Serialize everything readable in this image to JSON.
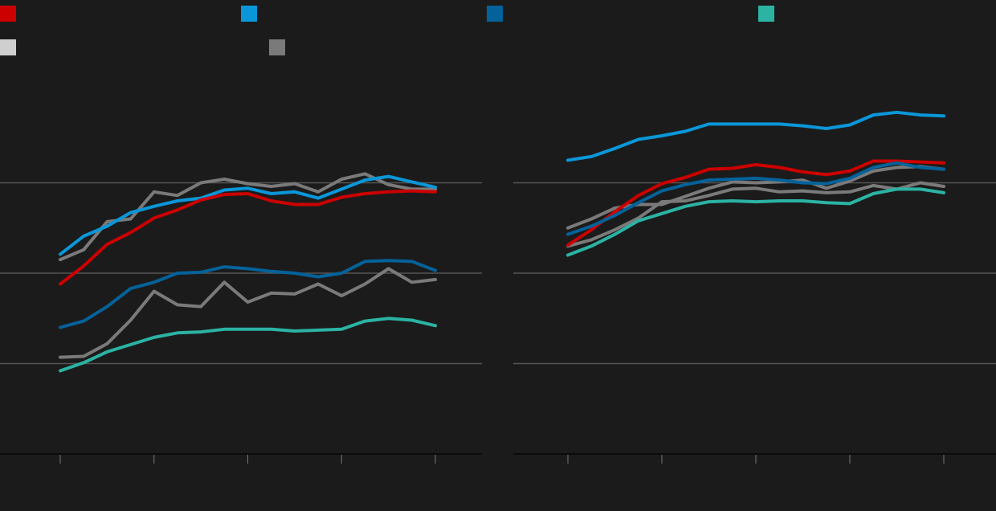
{
  "legend": [
    {
      "label": "",
      "color": "#cc0000"
    },
    {
      "label": "",
      "color": "#0a97d9"
    },
    {
      "label": "",
      "color": "#04629a"
    },
    {
      "label": "",
      "color": "#2bb3a4"
    },
    {
      "label": "",
      "color": "#cfcfcf"
    },
    {
      "label": "",
      "color": "#7a7a7a"
    }
  ],
  "chart_data": [
    {
      "type": "line",
      "title": "",
      "xlabel": "",
      "ylabel": "",
      "ylim": [
        0,
        4
      ],
      "grid": true,
      "legend_position": "top",
      "x": [
        0,
        1,
        2,
        3,
        4,
        5,
        6,
        7,
        8,
        9,
        10,
        11,
        12,
        13,
        14,
        15,
        16
      ],
      "series": [
        {
          "color": "#7a7a7a",
          "values": [
            2.15,
            2.26,
            2.57,
            2.6,
            2.9,
            2.86,
            3.0,
            3.04,
            2.99,
            2.96,
            2.99,
            2.9,
            3.04,
            3.1,
            2.98,
            2.93,
            2.93
          ]
        },
        {
          "color": "#7a7a7a",
          "values": [
            1.07,
            1.08,
            1.22,
            1.48,
            1.8,
            1.65,
            1.63,
            1.9,
            1.68,
            1.78,
            1.77,
            1.88,
            1.75,
            1.88,
            2.05,
            1.9,
            1.93
          ]
        },
        {
          "color": "#0a97d9",
          "values": [
            2.21,
            2.41,
            2.52,
            2.67,
            2.74,
            2.8,
            2.83,
            2.92,
            2.94,
            2.88,
            2.9,
            2.83,
            2.93,
            3.03,
            3.07,
            3.01,
            2.95
          ]
        },
        {
          "color": "#cc0000",
          "values": [
            1.88,
            2.08,
            2.32,
            2.45,
            2.61,
            2.7,
            2.81,
            2.87,
            2.88,
            2.8,
            2.76,
            2.76,
            2.84,
            2.88,
            2.9,
            2.91,
            2.9
          ]
        },
        {
          "color": "#04629a",
          "values": [
            1.4,
            1.47,
            1.63,
            1.83,
            1.9,
            2.0,
            2.01,
            2.07,
            2.05,
            2.02,
            2.0,
            1.96,
            2.0,
            2.13,
            2.14,
            2.13,
            2.03
          ]
        },
        {
          "color": "#2bb3a4",
          "values": [
            0.92,
            1.01,
            1.13,
            1.21,
            1.29,
            1.34,
            1.35,
            1.38,
            1.38,
            1.38,
            1.36,
            1.37,
            1.38,
            1.47,
            1.5,
            1.48,
            1.42
          ]
        }
      ]
    },
    {
      "type": "line",
      "title": "",
      "xlabel": "",
      "ylabel": "",
      "ylim": [
        0,
        4
      ],
      "grid": true,
      "legend_position": "top",
      "x": [
        0,
        1,
        2,
        3,
        4,
        5,
        6,
        7,
        8,
        9,
        10,
        11,
        12,
        13,
        14,
        15,
        16
      ],
      "series": [
        {
          "color": "#7a7a7a",
          "values": [
            2.5,
            2.6,
            2.72,
            2.76,
            2.76,
            2.85,
            2.94,
            3.01,
            3.0,
            3.01,
            3.03,
            2.94,
            3.02,
            3.13,
            3.17,
            3.18,
            3.15
          ]
        },
        {
          "color": "#7a7a7a",
          "values": [
            2.3,
            2.37,
            2.48,
            2.61,
            2.79,
            2.8,
            2.86,
            2.93,
            2.94,
            2.9,
            2.91,
            2.89,
            2.9,
            2.97,
            2.93,
            3.0,
            2.96
          ]
        },
        {
          "color": "#0a97d9",
          "values": [
            3.25,
            3.29,
            3.38,
            3.48,
            3.52,
            3.57,
            3.65,
            3.65,
            3.65,
            3.65,
            3.63,
            3.6,
            3.64,
            3.75,
            3.78,
            3.75,
            3.74
          ]
        },
        {
          "color": "#cc0000",
          "values": [
            2.31,
            2.48,
            2.68,
            2.86,
            2.99,
            3.06,
            3.15,
            3.16,
            3.2,
            3.17,
            3.12,
            3.09,
            3.13,
            3.24,
            3.24,
            3.23,
            3.22
          ]
        },
        {
          "color": "#04629a",
          "values": [
            2.43,
            2.52,
            2.64,
            2.78,
            2.91,
            2.98,
            3.03,
            3.04,
            3.05,
            3.03,
            3.0,
            2.99,
            3.05,
            3.17,
            3.22,
            3.17,
            3.15
          ]
        },
        {
          "color": "#2bb3a4",
          "values": [
            2.2,
            2.3,
            2.43,
            2.58,
            2.66,
            2.74,
            2.79,
            2.8,
            2.79,
            2.8,
            2.8,
            2.78,
            2.77,
            2.88,
            2.93,
            2.93,
            2.89
          ]
        }
      ]
    }
  ]
}
